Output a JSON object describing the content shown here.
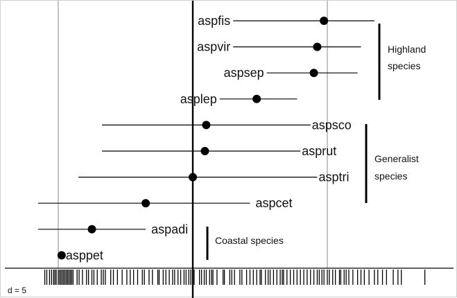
{
  "chart_data": {
    "type": "scatter",
    "grid_label": "d = 5",
    "series": [
      {
        "label": "aspfis",
        "center": 1.95,
        "lo": 0.6,
        "hi": 2.7
      },
      {
        "label": "aspvir",
        "center": 1.85,
        "lo": 0.6,
        "hi": 2.5
      },
      {
        "label": "aspsep",
        "center": 1.8,
        "lo": 1.1,
        "hi": 2.45
      },
      {
        "label": "asplep",
        "center": 0.95,
        "lo": 0.4,
        "hi": 1.55
      },
      {
        "label": "aspsco",
        "center": 0.2,
        "lo": -1.35,
        "hi": 1.75
      },
      {
        "label": "asprut",
        "center": 0.18,
        "lo": -1.35,
        "hi": 1.6
      },
      {
        "label": "asptri",
        "center": 0.0,
        "lo": -1.7,
        "hi": 1.85
      },
      {
        "label": "aspcet",
        "center": -0.7,
        "lo": -2.3,
        "hi": 0.85
      },
      {
        "label": "aspadi",
        "center": -1.5,
        "lo": -2.3,
        "hi": -0.7
      },
      {
        "label": "asppet",
        "center": -1.95,
        "lo": -1.95,
        "hi": -1.95
      }
    ],
    "groups": [
      {
        "lines": [
          "Highland",
          "species"
        ]
      },
      {
        "lines": [
          "Generalist",
          "species"
        ]
      },
      {
        "lines": [
          "Coastal species"
        ]
      }
    ],
    "rug": [
      -2.2,
      -2.17,
      -2.13,
      -2.1,
      -2.07,
      -2.05,
      -2.03,
      -2.0,
      -1.98,
      -1.96,
      -1.94,
      -1.92,
      -1.9,
      -1.88,
      -1.86,
      -1.84,
      -1.82,
      -1.8,
      -1.78,
      -1.72,
      -1.69,
      -1.64,
      -1.58,
      -1.55,
      -1.5,
      -1.47,
      -1.42,
      -1.36,
      -1.33,
      -1.3,
      -1.22,
      -1.18,
      -1.12,
      -1.05,
      -0.98,
      -0.93,
      -0.88,
      -0.82,
      -0.75,
      -0.72,
      -0.65,
      -0.6,
      -0.52,
      -0.5,
      -0.44,
      -0.4,
      -0.35,
      -0.3,
      -0.27,
      -0.22,
      -0.18,
      -0.13,
      -0.1,
      -0.06,
      -0.03,
      0.0,
      0.02,
      0.1,
      0.13,
      0.17,
      0.2,
      0.25,
      0.28,
      0.3,
      0.36,
      0.45,
      0.47,
      0.55,
      0.58,
      0.62,
      0.7,
      0.73,
      0.8,
      0.85,
      0.9,
      0.95,
      1.0,
      1.02,
      1.08,
      1.12,
      1.15,
      1.2,
      1.25,
      1.3,
      1.33,
      1.35,
      1.4,
      1.45,
      1.5,
      1.55,
      1.6,
      1.65,
      1.7,
      1.75,
      1.8,
      1.85,
      1.88,
      1.92,
      1.95,
      2.0,
      2.03,
      2.08,
      2.12,
      2.18,
      2.2,
      2.25,
      2.28,
      2.32,
      2.38,
      2.45,
      2.5,
      2.55,
      2.62,
      2.7,
      2.75,
      2.82,
      2.88,
      2.98,
      3.05,
      3.1,
      3.45
    ],
    "xlim": [
      -2.45,
      3.9
    ],
    "gridlines": [
      -2.0,
      0.0,
      2.0
    ]
  }
}
